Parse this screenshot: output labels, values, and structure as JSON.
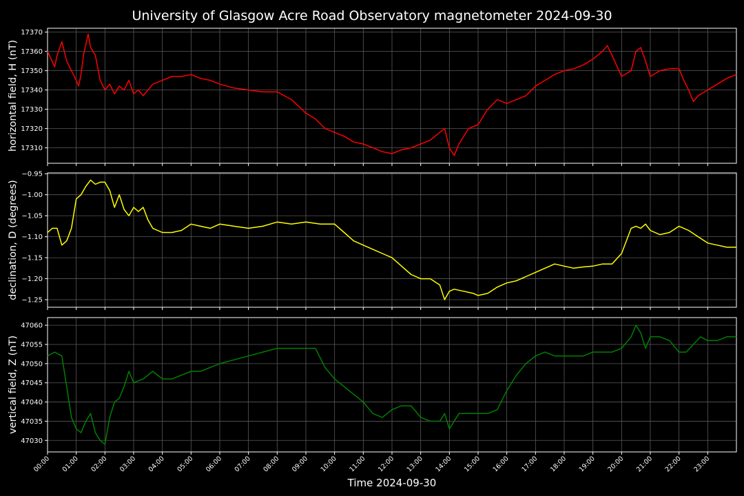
{
  "chart_data": {
    "type": "line",
    "title": "University of Glasgow Acre Road Observatory magnetometer 2024-09-30",
    "xlabel": "Time 2024-09-30",
    "x_ticks": [
      "00:00",
      "01:00",
      "02:00",
      "03:00",
      "04:00",
      "05:00",
      "06:00",
      "07:00",
      "08:00",
      "09:00",
      "10:00",
      "11:00",
      "12:00",
      "13:00",
      "14:00",
      "15:00",
      "16:00",
      "17:00",
      "18:00",
      "19:00",
      "20:00",
      "21:00",
      "22:00",
      "23:00"
    ],
    "xlim": [
      "00:00",
      "24:00"
    ],
    "grid": true,
    "background": "#000000",
    "panels": [
      {
        "ylabel": "horizontal field, H (nT)",
        "color": "#ff0000",
        "ylim": [
          17302,
          17372
        ],
        "y_ticks": [
          "17310",
          "17320",
          "17330",
          "17340",
          "17350",
          "17360",
          "17370"
        ],
        "series": {
          "x": [
            "00:00",
            "00:15",
            "00:20",
            "00:30",
            "00:40",
            "00:50",
            "01:00",
            "01:05",
            "01:10",
            "01:15",
            "01:25",
            "01:30",
            "01:40",
            "01:50",
            "02:00",
            "02:10",
            "02:20",
            "02:30",
            "02:40",
            "02:50",
            "03:00",
            "03:10",
            "03:20",
            "03:30",
            "03:40",
            "04:00",
            "04:20",
            "04:40",
            "05:00",
            "05:20",
            "05:40",
            "06:00",
            "06:30",
            "07:00",
            "07:30",
            "08:00",
            "08:30",
            "09:00",
            "09:20",
            "09:40",
            "10:00",
            "10:20",
            "10:40",
            "11:00",
            "11:20",
            "11:40",
            "12:00",
            "12:20",
            "12:40",
            "13:00",
            "13:20",
            "13:40",
            "13:50",
            "14:00",
            "14:10",
            "14:20",
            "14:40",
            "15:00",
            "15:20",
            "15:40",
            "16:00",
            "16:20",
            "16:40",
            "17:00",
            "17:20",
            "17:40",
            "18:00",
            "18:20",
            "18:40",
            "19:00",
            "19:20",
            "19:30",
            "19:40",
            "20:00",
            "20:20",
            "20:30",
            "20:40",
            "20:50",
            "21:00",
            "21:20",
            "21:40",
            "22:00",
            "22:10",
            "22:20",
            "22:30",
            "22:40",
            "23:00",
            "23:20",
            "23:40",
            "24:00"
          ],
          "values": [
            17360,
            17352,
            17358,
            17365,
            17355,
            17350,
            17345,
            17342,
            17348,
            17358,
            17369,
            17362,
            17358,
            17345,
            17340,
            17343,
            17338,
            17342,
            17340,
            17345,
            17338,
            17340,
            17337,
            17340,
            17343,
            17345,
            17347,
            17347,
            17348,
            17346,
            17345,
            17343,
            17341,
            17340,
            17339,
            17339,
            17335,
            17328,
            17325,
            17320,
            17318,
            17316,
            17313,
            17312,
            17310,
            17308,
            17307,
            17309,
            17310,
            17312,
            17314,
            17318,
            17320,
            17310,
            17306,
            17312,
            17320,
            17322,
            17330,
            17335,
            17333,
            17335,
            17337,
            17342,
            17345,
            17348,
            17350,
            17351,
            17353,
            17356,
            17360,
            17363,
            17358,
            17347,
            17350,
            17360,
            17362,
            17355,
            17347,
            17350,
            17351,
            17351,
            17345,
            17340,
            17334,
            17337,
            17340,
            17343,
            17346,
            17348
          ]
        }
      },
      {
        "ylabel": "declination, D (degrees)",
        "color": "#ffff00",
        "ylim": [
          -1.268,
          -0.948
        ],
        "y_ticks": [
          "−0.95",
          "−1.00",
          "−1.05",
          "−1.10",
          "−1.15",
          "−1.20",
          "−1.25"
        ],
        "series": {
          "x": [
            "00:00",
            "00:10",
            "00:20",
            "00:30",
            "00:40",
            "00:50",
            "01:00",
            "01:10",
            "01:20",
            "01:30",
            "01:40",
            "01:50",
            "02:00",
            "02:10",
            "02:20",
            "02:30",
            "02:40",
            "02:50",
            "03:00",
            "03:10",
            "03:20",
            "03:30",
            "03:40",
            "04:00",
            "04:20",
            "04:40",
            "05:00",
            "05:20",
            "05:40",
            "06:00",
            "06:30",
            "07:00",
            "07:30",
            "08:00",
            "08:30",
            "09:00",
            "09:30",
            "10:00",
            "10:20",
            "10:40",
            "11:00",
            "11:20",
            "11:40",
            "12:00",
            "12:20",
            "12:40",
            "13:00",
            "13:20",
            "13:40",
            "13:50",
            "14:00",
            "14:10",
            "14:30",
            "14:50",
            "15:00",
            "15:20",
            "15:40",
            "16:00",
            "16:20",
            "16:40",
            "17:00",
            "17:20",
            "17:40",
            "18:00",
            "18:20",
            "18:40",
            "19:00",
            "19:20",
            "19:40",
            "20:00",
            "20:20",
            "20:30",
            "20:40",
            "20:50",
            "21:00",
            "21:20",
            "21:40",
            "22:00",
            "22:20",
            "22:40",
            "23:00",
            "23:20",
            "23:40",
            "24:00"
          ],
          "values": [
            -1.09,
            -1.08,
            -1.08,
            -1.12,
            -1.11,
            -1.08,
            -1.01,
            -1.0,
            -0.98,
            -0.965,
            -0.975,
            -0.97,
            -0.97,
            -0.99,
            -1.03,
            -1.0,
            -1.035,
            -1.05,
            -1.03,
            -1.04,
            -1.03,
            -1.06,
            -1.08,
            -1.09,
            -1.09,
            -1.085,
            -1.07,
            -1.075,
            -1.08,
            -1.07,
            -1.075,
            -1.08,
            -1.075,
            -1.065,
            -1.07,
            -1.065,
            -1.07,
            -1.07,
            -1.09,
            -1.11,
            -1.12,
            -1.13,
            -1.14,
            -1.15,
            -1.17,
            -1.19,
            -1.2,
            -1.2,
            -1.215,
            -1.25,
            -1.23,
            -1.225,
            -1.23,
            -1.235,
            -1.24,
            -1.235,
            -1.22,
            -1.21,
            -1.205,
            -1.195,
            -1.185,
            -1.175,
            -1.165,
            -1.17,
            -1.175,
            -1.172,
            -1.17,
            -1.165,
            -1.165,
            -1.14,
            -1.08,
            -1.075,
            -1.08,
            -1.07,
            -1.085,
            -1.095,
            -1.09,
            -1.075,
            -1.085,
            -1.1,
            -1.115,
            -1.12,
            -1.125,
            -1.125
          ]
        }
      },
      {
        "ylabel": "vertical field, Z (nT)",
        "color": "#008000",
        "ylim": [
          47027,
          47062
        ],
        "y_ticks": [
          "47030",
          "47035",
          "47040",
          "47045",
          "47050",
          "47055",
          "47060"
        ],
        "series": {
          "x": [
            "00:00",
            "00:15",
            "00:30",
            "00:40",
            "00:50",
            "01:00",
            "01:10",
            "01:20",
            "01:30",
            "01:40",
            "01:50",
            "02:00",
            "02:10",
            "02:20",
            "02:30",
            "02:40",
            "02:50",
            "03:00",
            "03:20",
            "03:40",
            "04:00",
            "04:20",
            "04:40",
            "05:00",
            "05:20",
            "05:40",
            "06:00",
            "06:30",
            "07:00",
            "07:30",
            "08:00",
            "08:30",
            "09:00",
            "09:20",
            "09:40",
            "10:00",
            "10:20",
            "10:40",
            "11:00",
            "11:20",
            "11:40",
            "12:00",
            "12:20",
            "12:40",
            "13:00",
            "13:20",
            "13:40",
            "13:50",
            "14:00",
            "14:20",
            "14:40",
            "15:00",
            "15:20",
            "15:40",
            "16:00",
            "16:20",
            "16:40",
            "17:00",
            "17:20",
            "17:40",
            "18:00",
            "18:20",
            "18:40",
            "19:00",
            "19:20",
            "19:40",
            "20:00",
            "20:20",
            "20:30",
            "20:40",
            "20:50",
            "21:00",
            "21:20",
            "21:40",
            "22:00",
            "22:15",
            "22:30",
            "22:45",
            "23:00",
            "23:20",
            "23:40",
            "24:00"
          ],
          "values": [
            47052,
            47053,
            47052,
            47044,
            47036,
            47033,
            47032,
            47035,
            47037,
            47032,
            47030,
            47029,
            47036,
            47040,
            47041,
            47044,
            47048,
            47045,
            47046,
            47048,
            47046,
            47046,
            47047,
            47048,
            47048,
            47049,
            47050,
            47051,
            47052,
            47053,
            47054,
            47054,
            47054,
            47054,
            47049,
            47046,
            47044,
            47042,
            47040,
            47037,
            47036,
            47038,
            47039,
            47039,
            47036,
            47035,
            47035,
            47037,
            47033,
            47037,
            47037,
            47037,
            47037,
            47038,
            47043,
            47047,
            47050,
            47052,
            47053,
            47052,
            47052,
            47052,
            47052,
            47053,
            47053,
            47053,
            47054,
            47057,
            47060,
            47058,
            47054,
            47057,
            47057,
            47056,
            47053,
            47053,
            47055,
            47057,
            47056,
            47056,
            47057,
            47057
          ]
        }
      }
    ]
  }
}
